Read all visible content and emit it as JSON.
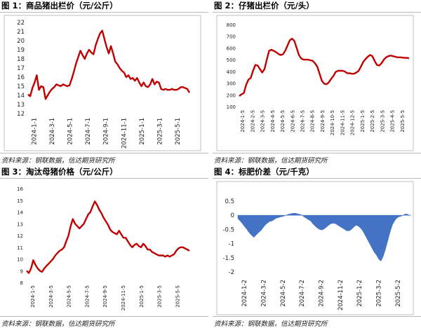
{
  "panels": [
    {
      "title": "图 1：商品猪出栏价（元/公斤）",
      "source": "资料来源：钢联数据，信达期货研究所",
      "chart_data": {
        "type": "line",
        "title": "商品猪出栏价（元/公斤）",
        "xlabel": "",
        "ylabel": "",
        "ylim": [
          12,
          22
        ],
        "yticks": [
          12,
          13,
          14,
          15,
          16,
          17,
          18,
          19,
          20,
          21,
          22
        ],
        "xtick_labels": [
          "2024-1-1",
          "2024-3-1",
          "2024-5-1",
          "2024-7-1",
          "2024-9-1",
          "2024-11-1",
          "2025-1-1",
          "2025-3-1",
          "2025-5-1"
        ],
        "x": [
          "2024-1-1",
          "2024-1-8",
          "2024-1-15",
          "2024-1-22",
          "2024-1-29",
          "2024-2-5",
          "2024-2-12",
          "2024-2-19",
          "2024-2-26",
          "2024-3-4",
          "2024-3-11",
          "2024-3-18",
          "2024-3-25",
          "2024-4-1",
          "2024-4-8",
          "2024-4-15",
          "2024-4-22",
          "2024-4-29",
          "2024-5-6",
          "2024-5-13",
          "2024-5-20",
          "2024-5-27",
          "2024-6-3",
          "2024-6-10",
          "2024-6-17",
          "2024-6-24",
          "2024-7-1",
          "2024-7-8",
          "2024-7-15",
          "2024-7-22",
          "2024-7-29",
          "2024-8-5",
          "2024-8-12",
          "2024-8-19",
          "2024-8-26",
          "2024-9-2",
          "2024-9-9",
          "2024-9-16",
          "2024-9-23",
          "2024-9-30",
          "2024-10-7",
          "2024-10-14",
          "2024-10-21",
          "2024-10-28",
          "2024-11-4",
          "2024-11-11",
          "2024-11-18",
          "2024-11-25",
          "2024-12-2",
          "2024-12-9",
          "2024-12-16",
          "2024-12-23",
          "2024-12-30",
          "2025-1-6",
          "2025-1-13",
          "2025-1-20",
          "2025-1-27",
          "2025-2-3",
          "2025-2-10",
          "2025-2-17",
          "2025-2-24",
          "2025-3-3",
          "2025-3-10",
          "2025-3-17",
          "2025-3-24",
          "2025-3-31",
          "2025-4-7",
          "2025-4-14",
          "2025-4-21",
          "2025-4-28",
          "2025-5-5",
          "2025-5-12",
          "2025-5-19",
          "2025-5-26",
          "2025-6-2"
        ],
        "series": [
          {
            "values": [
              14.1,
              13.9,
              14.8,
              15.4,
              16.2,
              14.6,
              15.0,
              14.9,
              13.6,
              14.0,
              14.4,
              14.7,
              14.9,
              15.2,
              15.1,
              15.0,
              15.2,
              15.1,
              15.0,
              15.1,
              15.8,
              16.6,
              17.5,
              18.2,
              18.9,
              18.4,
              18.0,
              18.6,
              19.0,
              18.7,
              18.5,
              19.5,
              20.2,
              20.8,
              21.1,
              20.2,
              19.3,
              18.6,
              19.4,
              18.6,
              17.7,
              17.4,
              17.0,
              16.7,
              16.5,
              16.0,
              16.2,
              15.8,
              15.9,
              15.6,
              15.9,
              15.4,
              15.0,
              15.4,
              15.0,
              14.9,
              15.2,
              15.8,
              15.2,
              15.5,
              15.4,
              14.7,
              14.6,
              14.7,
              14.6,
              14.6,
              14.7,
              14.6,
              14.6,
              14.7,
              14.9,
              14.9,
              14.8,
              14.7,
              14.3
            ],
            "color": "#c00000"
          }
        ],
        "grid": false
      }
    },
    {
      "title": "图 2：仔猪出栏价（元/头）",
      "source": "资料来源：钢联数据，信达期货研究所",
      "chart_data": {
        "type": "line",
        "title": "仔猪出栏价（元/头）",
        "xlabel": "",
        "ylabel": "",
        "ylim": [
          100,
          800
        ],
        "yticks": [
          100,
          200,
          300,
          400,
          500,
          600,
          700,
          800
        ],
        "xtick_labels": [
          "2024-1-5",
          "2024-2-5",
          "2024-3-5",
          "2024-4-5",
          "2024-5-5",
          "2024-6-5",
          "2024-7-5",
          "2024-8-5",
          "2024-9-5",
          "2024-10-5",
          "2024-11-5",
          "2024-12-5",
          "2025-1-5",
          "2025-2-5",
          "2025-3-5",
          "2025-4-5",
          "2025-5-5"
        ],
        "series": [
          {
            "values": [
              190,
              205,
              215,
              285,
              330,
              345,
              405,
              455,
              450,
              420,
              390,
              420,
              500,
              575,
              585,
              575,
              565,
              550,
              540,
              545,
              575,
              620,
              665,
              680,
              660,
              600,
              540,
              510,
              500,
              500,
              500,
              495,
              490,
              470,
              440,
              380,
              320,
              295,
              290,
              305,
              335,
              360,
              395,
              405,
              405,
              405,
              400,
              385,
              385,
              380,
              380,
              390,
              405,
              440,
              480,
              505,
              525,
              540,
              530,
              490,
              455,
              450,
              470,
              500,
              520,
              530,
              535,
              530,
              525,
              520,
              520,
              518,
              515,
              515,
              512
            ],
            "color": "#c00000"
          }
        ],
        "grid": false
      }
    },
    {
      "title": "图 3：淘汰母猪价格（元/公斤）",
      "source": "资料来源：钢联数据，信达期货研究所",
      "chart_data": {
        "type": "line",
        "title": "淘汰母猪价格（元/公斤）",
        "xlabel": "",
        "ylabel": "",
        "ylim": [
          8,
          16
        ],
        "yticks": [
          8,
          9,
          10,
          11,
          12,
          13,
          14,
          15,
          16
        ],
        "xtick_labels": [
          "2024-1-5",
          "2024-3-5",
          "2024-5-5",
          "2024-7-5",
          "2024-9-5",
          "2024-11-5",
          "2025-1-5",
          "2025-3-5",
          "2025-5-5"
        ],
        "series": [
          {
            "values": [
              9.0,
              8.8,
              9.2,
              9.9,
              9.5,
              9.2,
              9.0,
              8.9,
              9.2,
              9.4,
              9.6,
              9.8,
              10.0,
              10.3,
              10.5,
              10.7,
              10.8,
              11.0,
              11.5,
              12.0,
              12.8,
              13.4,
              13.0,
              12.8,
              12.6,
              12.8,
              13.0,
              13.4,
              13.8,
              14.0,
              14.5,
              14.9,
              14.6,
              14.2,
              13.9,
              13.5,
              13.2,
              12.9,
              12.5,
              12.3,
              12.2,
              12.1,
              12.4,
              12.1,
              11.8,
              11.8,
              11.5,
              11.2,
              11.0,
              11.2,
              11.3,
              11.1,
              11.0,
              11.3,
              11.1,
              10.8,
              10.8,
              10.6,
              10.5,
              10.4,
              10.3,
              10.3,
              10.3,
              10.2,
              10.3,
              10.2,
              10.3,
              10.4,
              10.7,
              10.9,
              11.0,
              11.0,
              10.9,
              10.8,
              10.7
            ],
            "color": "#c00000"
          }
        ],
        "grid": false
      }
    },
    {
      "title": "图 4：标肥价差（元/千克）",
      "source": "资料来源：钢联数据，信达期货研究所",
      "chart_data": {
        "type": "area",
        "title": "标肥价差（元/千克）",
        "xlabel": "",
        "ylabel": "",
        "ylim": [
          -2,
          0.5
        ],
        "yticks": [
          -2,
          -1.5,
          -1,
          -0.5,
          0,
          0.5
        ],
        "ytick_labels": [
          "-2",
          "-1.5",
          "-1",
          "-0.5",
          "0",
          "0.5"
        ],
        "xtick_labels": [
          "2024-1-2",
          "2024-3-2",
          "2024-5-2",
          "2024-7-2",
          "2024-9-2",
          "2024-11-2",
          "2025-1-2",
          "2025-3-2",
          "2025-5-2"
        ],
        "series": [
          {
            "values": [
              -0.12,
              -0.2,
              -0.3,
              -0.4,
              -0.5,
              -0.62,
              -0.7,
              -0.78,
              -0.7,
              -0.62,
              -0.55,
              -0.45,
              -0.35,
              -0.28,
              -0.22,
              -0.2,
              -0.15,
              -0.1,
              -0.08,
              -0.05,
              -0.04,
              0.0,
              0.03,
              0.05,
              0.07,
              0.08,
              0.06,
              0.04,
              0.02,
              -0.05,
              -0.1,
              -0.15,
              -0.2,
              -0.3,
              -0.38,
              -0.45,
              -0.5,
              -0.52,
              -0.48,
              -0.42,
              -0.35,
              -0.3,
              -0.28,
              -0.3,
              -0.35,
              -0.4,
              -0.45,
              -0.5,
              -0.55,
              -0.55,
              -0.5,
              -0.42,
              -0.35,
              -0.38,
              -0.45,
              -0.55,
              -0.7,
              -0.85,
              -1.0,
              -1.15,
              -1.3,
              -1.4,
              -1.55,
              -1.62,
              -1.45,
              -1.2,
              -0.9,
              -0.6,
              -0.35,
              -0.2,
              -0.1,
              -0.05,
              -0.03,
              0.02,
              0.05,
              0.03,
              -0.02
            ],
            "color": "#4472c4"
          }
        ],
        "grid": false
      }
    }
  ]
}
